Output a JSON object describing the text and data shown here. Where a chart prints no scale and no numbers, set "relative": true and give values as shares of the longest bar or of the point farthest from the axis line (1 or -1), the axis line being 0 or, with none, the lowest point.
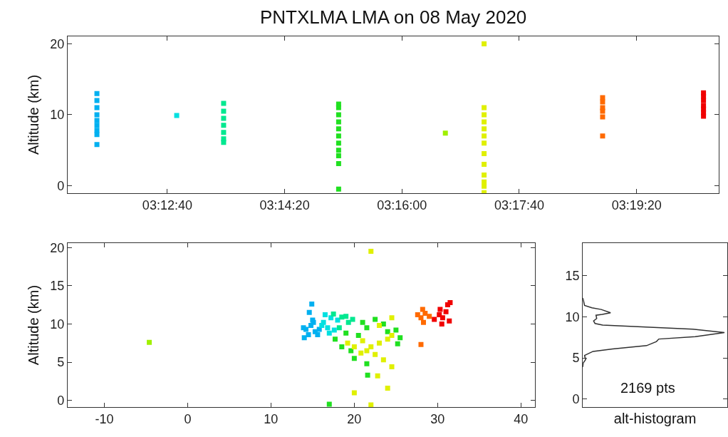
{
  "chart_data": [
    {
      "type": "scatter",
      "title": "PNTXLMA LMA on 08 May 2020",
      "ylabel": "Altitude (km)",
      "marker": "square",
      "xlim": [
        3.1875,
        3.34167
      ],
      "xticks": [
        {
          "value": 3.21111,
          "label": "03:12:40"
        },
        {
          "value": 3.23889,
          "label": "03:14:20"
        },
        {
          "value": 3.26667,
          "label": "03:16:00"
        },
        {
          "value": 3.29444,
          "label": "03:17:40"
        },
        {
          "value": 3.32222,
          "label": "03:19:20"
        }
      ],
      "ylim": [
        -1.1,
        21.1
      ],
      "yticks": [
        0,
        10,
        20
      ],
      "series": [
        {
          "color": "#00b0f0",
          "x": [
            3.19444,
            3.19444,
            3.19444,
            3.19444,
            3.19444,
            3.19444,
            3.19444,
            3.19444,
            3.19444
          ],
          "values": [
            5.8,
            7.2,
            7.8,
            8.5,
            9.2,
            10,
            11,
            12,
            13
          ]
        },
        {
          "color": "#00e0e0",
          "x": [
            3.21333
          ],
          "values": [
            9.9
          ]
        },
        {
          "color": "#00e890",
          "x": [
            3.22444,
            3.22444,
            3.22444,
            3.22444,
            3.22444,
            3.22444,
            3.22444
          ],
          "values": [
            6.1,
            6.6,
            7.5,
            8.5,
            9.5,
            10.5,
            11.6
          ]
        },
        {
          "color": "#20e020",
          "x": [
            3.25167,
            3.25167,
            3.25167,
            3.25167,
            3.25167,
            3.25167,
            3.25167,
            3.25167,
            3.25167,
            3.25167,
            3.25167
          ],
          "values": [
            -0.5,
            3.1,
            4.2,
            5,
            6,
            7,
            8,
            9,
            10,
            11,
            11.5
          ]
        },
        {
          "color": "#a0f000",
          "x": [
            3.27694
          ],
          "values": [
            7.4
          ]
        },
        {
          "color": "#e0f000",
          "x": [
            3.28611,
            3.28611,
            3.28611,
            3.28611,
            3.28611,
            3.28611,
            3.28611,
            3.28611,
            3.28611,
            3.28611,
            3.28611,
            3.28611,
            3.28611
          ],
          "values": [
            -1,
            -0.1,
            0.5,
            1.5,
            3,
            4.5,
            6,
            7,
            8,
            9,
            10,
            11,
            20
          ]
        },
        {
          "color": "#ff6a00",
          "x": [
            3.31417,
            3.31417,
            3.31417,
            3.31417,
            3.31417,
            3.31417
          ],
          "values": [
            7.0,
            9.7,
            10.5,
            11.0,
            11.8,
            12.4
          ]
        },
        {
          "color": "#f00000",
          "x": [
            3.33806,
            3.33806,
            3.33806,
            3.33806,
            3.33806,
            3.33806,
            3.33806
          ],
          "values": [
            9.8,
            10.3,
            10.8,
            11.3,
            12,
            12.6,
            13.1
          ]
        }
      ]
    },
    {
      "type": "scatter",
      "ylabel": "Altitude (km)",
      "marker": "square",
      "xlim": [
        -14.4,
        41.7
      ],
      "xticks": [
        -10,
        0,
        10,
        20,
        30,
        40
      ],
      "ylim": [
        -0.9,
        20.6
      ],
      "yticks": [
        0,
        5,
        10,
        15,
        20
      ],
      "series": [
        {
          "color": "#00b0f0",
          "x": [
            14.2,
            14.5,
            14.8,
            15,
            14.6,
            14.9,
            15.3,
            15.6,
            14,
            15.1,
            13.9,
            15.8
          ],
          "values": [
            9.3,
            8.6,
            9.8,
            10.5,
            11.5,
            12.6,
            9,
            8.6,
            8.2,
            10.2,
            9.5,
            9.3
          ]
        },
        {
          "color": "#00e0e0",
          "x": [
            16.3,
            16.8,
            17.2,
            17.6,
            16.5,
            18,
            17,
            16.1
          ],
          "values": [
            10.2,
            9.5,
            10.8,
            9.2,
            11.2,
            10.5,
            8.8,
            9.8
          ]
        },
        {
          "color": "#00e890",
          "x": [
            18.5,
            19,
            19.3,
            18.2,
            19.8,
            17.5
          ],
          "values": [
            10.9,
            11,
            10.2,
            9.5,
            10.6,
            11.3
          ]
        },
        {
          "color": "#20e020",
          "x": [
            17.7,
            18.5,
            19.6,
            20.5,
            21.5,
            22.5,
            23.5,
            25,
            25.5,
            20,
            21.5,
            21.6,
            17,
            19,
            21,
            25.2,
            24
          ],
          "values": [
            8,
            7,
            6.5,
            8.5,
            9.5,
            10.6,
            10,
            9.2,
            8.2,
            5.5,
            4.8,
            3.3,
            -0.5,
            8.8,
            10.2,
            7.4,
            9
          ]
        },
        {
          "color": "#a0f000",
          "x": [
            -4.6
          ],
          "values": [
            7.6
          ]
        },
        {
          "color": "#e0f000",
          "x": [
            19.2,
            20,
            21,
            22,
            23,
            24,
            24.5,
            23,
            21.5,
            22.5,
            23.5,
            24.5,
            20.8,
            22,
            20,
            24,
            22,
            22.8,
            24.5
          ],
          "values": [
            7.5,
            7,
            7.8,
            7,
            7.5,
            8,
            8.5,
            9.8,
            6.5,
            6,
            5.3,
            4.4,
            6.2,
            19.5,
            1,
            1.6,
            -0.6,
            3.2,
            10.8
          ]
        },
        {
          "color": "#ff6a00",
          "x": [
            27.6,
            28,
            28.5,
            29,
            28.2,
            28.3,
            28
          ],
          "values": [
            11.2,
            10.8,
            11.4,
            11.0,
            11.9,
            10.2,
            7.3
          ]
        },
        {
          "color": "#f00000",
          "x": [
            29.6,
            30.2,
            30.6,
            31,
            31.2,
            31.5,
            30.3,
            31.4,
            30.5
          ],
          "values": [
            10.6,
            11.2,
            10.8,
            11.6,
            12.5,
            12.8,
            11.9,
            10.4,
            10
          ]
        }
      ]
    },
    {
      "type": "line",
      "orientation": "horizontal",
      "relative": true,
      "xlabel": "alt-histogram",
      "annotations": [
        "2169 pts"
      ],
      "tick_labels": "y",
      "ylim": [
        -1,
        19
      ],
      "yticks": [
        0,
        5,
        10,
        15
      ],
      "series": [
        {
          "color": "#303030",
          "x": [
            12.3,
            11.8,
            11.4,
            11.1,
            10.9,
            10.5,
            10.3,
            10.2,
            9.8,
            9.5,
            9.2,
            9.0,
            8.5,
            8.1,
            7.6,
            7.3,
            7.0,
            6.5,
            6.1,
            5.8,
            5.3,
            4.8,
            4.4,
            3.9
          ],
          "values": [
            0,
            0.007,
            0.012,
            0.064,
            0.13,
            0.196,
            0.137,
            0.093,
            0.098,
            0.076,
            0.086,
            0.14,
            0.777,
            1.0,
            0.794,
            0.536,
            0.52,
            0.45,
            0.21,
            0.072,
            0.012,
            0.02,
            0.003,
            0
          ]
        }
      ]
    }
  ]
}
